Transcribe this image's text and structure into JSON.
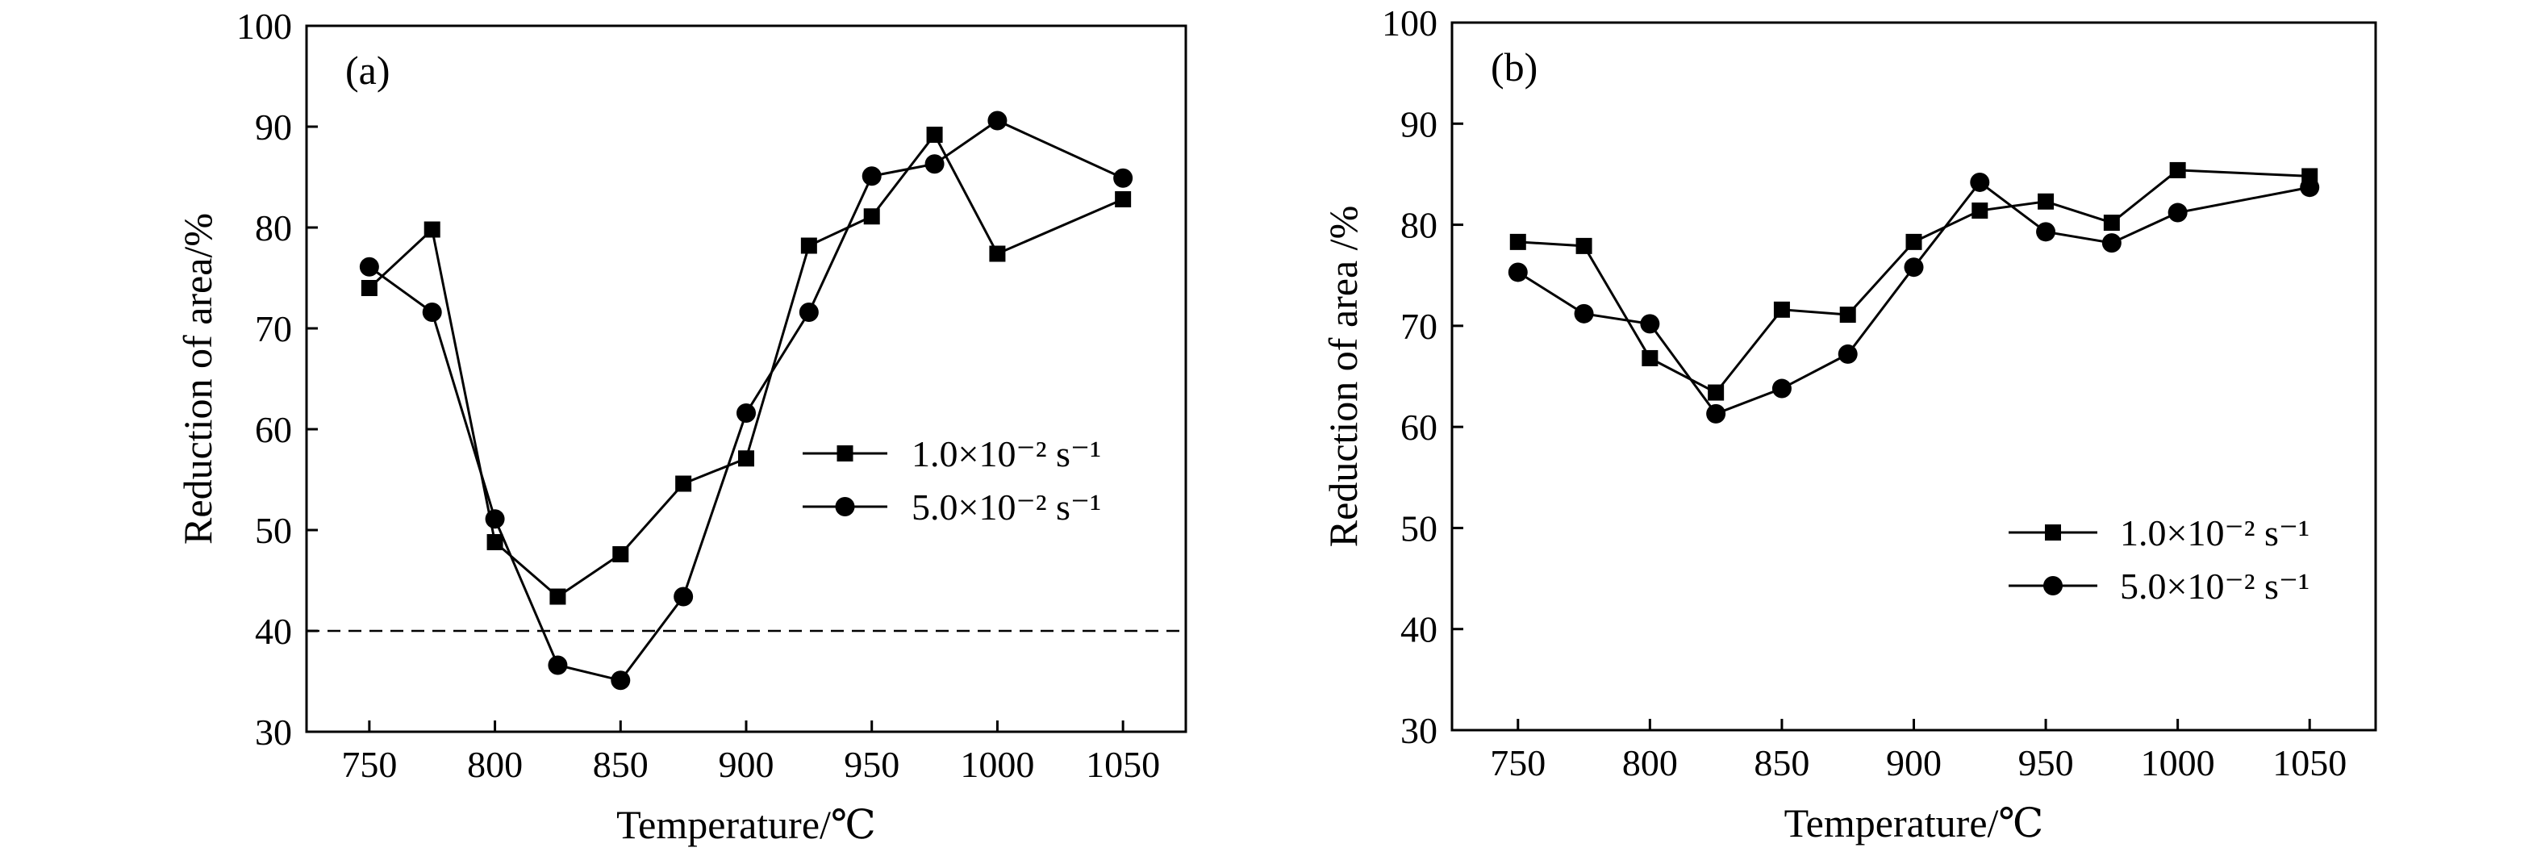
{
  "chart_data": [
    {
      "type": "line",
      "panel_label": "(a)",
      "xlabel": "Temperature/℃",
      "ylabel": "Reduction of area/%",
      "xticks": [
        750,
        800,
        850,
        900,
        950,
        1000,
        1050
      ],
      "yticks": [
        30,
        40,
        50,
        60,
        70,
        80,
        90,
        100
      ],
      "xlim": [
        725,
        1075
      ],
      "ylim": [
        30,
        100
      ],
      "reference_line": {
        "y": 40,
        "style": "dashed"
      },
      "legend_position": "right-middle",
      "series": [
        {
          "name": "1.0×10⁻² s⁻¹",
          "marker": "square",
          "x": [
            750,
            775,
            800,
            825,
            850,
            875,
            900,
            925,
            950,
            975,
            1000,
            1050
          ],
          "y": [
            74,
            79.8,
            48.8,
            43.4,
            47.6,
            54.6,
            57.1,
            78.2,
            81.1,
            89.2,
            77.4,
            82.8
          ]
        },
        {
          "name": "5.0×10⁻² s⁻¹",
          "marker": "circle",
          "x": [
            750,
            775,
            800,
            825,
            850,
            875,
            900,
            925,
            950,
            975,
            1000,
            1050
          ],
          "y": [
            76.1,
            71.6,
            51.1,
            36.6,
            35.1,
            43.4,
            61.6,
            71.6,
            85.1,
            86.3,
            90.6,
            84.9
          ]
        }
      ]
    },
    {
      "type": "line",
      "panel_label": "(b)",
      "xlabel": "Temperature/℃",
      "ylabel": "Reduction of area /%",
      "xticks": [
        750,
        800,
        850,
        900,
        950,
        1000,
        1050
      ],
      "yticks": [
        30,
        40,
        50,
        60,
        70,
        80,
        90,
        100
      ],
      "xlim": [
        725,
        1075
      ],
      "ylim": [
        30,
        100
      ],
      "legend_position": "bottom-right",
      "series": [
        {
          "name": "1.0×10⁻² s⁻¹",
          "marker": "square",
          "x": [
            750,
            775,
            800,
            825,
            850,
            875,
            900,
            925,
            950,
            975,
            1000,
            1050
          ],
          "y": [
            78.3,
            77.9,
            66.8,
            63.4,
            71.6,
            71.1,
            78.3,
            81.4,
            82.3,
            80.2,
            85.4,
            84.8
          ]
        },
        {
          "name": "5.0×10⁻² s⁻¹",
          "marker": "circle",
          "x": [
            750,
            775,
            800,
            825,
            850,
            875,
            900,
            925,
            950,
            975,
            1000,
            1050
          ],
          "y": [
            75.3,
            71.2,
            70.2,
            61.3,
            63.8,
            67.2,
            75.8,
            84.2,
            79.3,
            78.2,
            81.2,
            83.7
          ]
        }
      ]
    }
  ]
}
